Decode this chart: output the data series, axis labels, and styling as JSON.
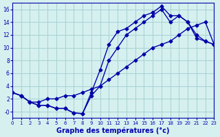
{
  "title": "",
  "xlabel": "Graphe des températures (°c)",
  "background_color": "#d6f0f0",
  "grid_color": "#aad4d4",
  "line_color": "#0000aa",
  "line1": {
    "x": [
      0,
      1,
      2,
      3,
      4,
      5,
      6,
      7,
      8,
      9,
      10,
      11,
      12,
      13,
      14,
      15,
      16,
      17,
      18,
      19,
      20,
      21,
      22,
      23
    ],
    "y": [
      3,
      2.5,
      1.5,
      1,
      1,
      0.5,
      0.5,
      -0.2,
      -0.3,
      3,
      6.5,
      10.5,
      12.5,
      13,
      14,
      15,
      15.5,
      16.5,
      15,
      15,
      14,
      11.5,
      11,
      10.5
    ]
  },
  "line2": {
    "x": [
      0,
      1,
      2,
      3,
      4,
      5,
      6,
      7,
      8,
      9,
      10,
      11,
      12,
      13,
      14,
      15,
      16,
      17,
      18,
      19,
      20,
      21,
      22,
      23
    ],
    "y": [
      3,
      2.5,
      1.5,
      1.5,
      2,
      2,
      2.5,
      2.5,
      3,
      3.5,
      4,
      5,
      6,
      7,
      8,
      9,
      10,
      10.5,
      11,
      12,
      13,
      13.5,
      14,
      10.5
    ]
  },
  "line3": {
    "x": [
      0,
      1,
      2,
      3,
      4,
      5,
      6,
      7,
      8,
      9,
      10,
      11,
      12,
      13,
      14,
      15,
      16,
      17,
      18,
      19,
      20,
      21,
      22,
      23
    ],
    "y": [
      3,
      2.5,
      1.5,
      1,
      1,
      0.5,
      0.5,
      -0.2,
      -0.3,
      2.5,
      4,
      8,
      10,
      12,
      13,
      14,
      15,
      16,
      14,
      15,
      14,
      12,
      11,
      10.5
    ]
  },
  "xlim": [
    0,
    23
  ],
  "ylim": [
    -1,
    17
  ],
  "xticks": [
    0,
    1,
    2,
    3,
    4,
    5,
    6,
    7,
    8,
    9,
    10,
    11,
    12,
    13,
    14,
    15,
    16,
    17,
    18,
    19,
    20,
    21,
    22,
    23
  ],
  "yticks": [
    0,
    2,
    4,
    6,
    8,
    10,
    12,
    14,
    16
  ],
  "ytick_labels": [
    "-0",
    "2",
    "4",
    "6",
    "8",
    "10",
    "12",
    "14",
    "16"
  ]
}
